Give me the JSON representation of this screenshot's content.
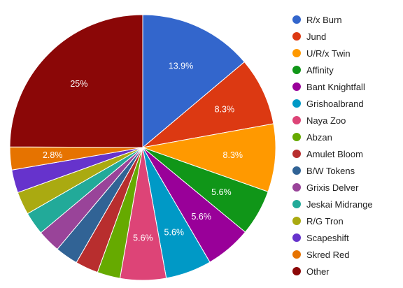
{
  "chart_data": {
    "type": "pie",
    "title": "",
    "legend_position": "right",
    "slices": [
      {
        "name": "R/x Burn",
        "value": 13.9,
        "label": "13.9%",
        "color": "#3366cc"
      },
      {
        "name": "Jund",
        "value": 8.3,
        "label": "8.3%",
        "color": "#dc3912"
      },
      {
        "name": "U/R/x Twin",
        "value": 8.3,
        "label": "8.3%",
        "color": "#ff9900"
      },
      {
        "name": "Affinity",
        "value": 5.6,
        "label": "5.6%",
        "color": "#109618"
      },
      {
        "name": "Bant Knightfall",
        "value": 5.6,
        "label": "5.6%",
        "color": "#990099"
      },
      {
        "name": "Grishoalbrand",
        "value": 5.6,
        "label": "5.6%",
        "color": "#0099c6"
      },
      {
        "name": "Naya Zoo",
        "value": 5.6,
        "label": "5.6%",
        "color": "#dd4477"
      },
      {
        "name": "Abzan",
        "value": 2.8,
        "label": "",
        "color": "#66aa00"
      },
      {
        "name": "Amulet Bloom",
        "value": 2.8,
        "label": "",
        "color": "#b82e2e"
      },
      {
        "name": "B/W Tokens",
        "value": 2.8,
        "label": "",
        "color": "#316395"
      },
      {
        "name": "Grixis Delver",
        "value": 2.8,
        "label": "",
        "color": "#994499"
      },
      {
        "name": "Jeskai Midrange",
        "value": 2.8,
        "label": "",
        "color": "#22aa99"
      },
      {
        "name": "R/G Tron",
        "value": 2.8,
        "label": "",
        "color": "#aaaa11"
      },
      {
        "name": "Scapeshift",
        "value": 2.8,
        "label": "",
        "color": "#6633cc"
      },
      {
        "name": "Skred Red",
        "value": 2.8,
        "label": "2.8%",
        "color": "#e67300"
      },
      {
        "name": "Other",
        "value": 25,
        "label": "25%",
        "color": "#8b0707"
      }
    ]
  }
}
